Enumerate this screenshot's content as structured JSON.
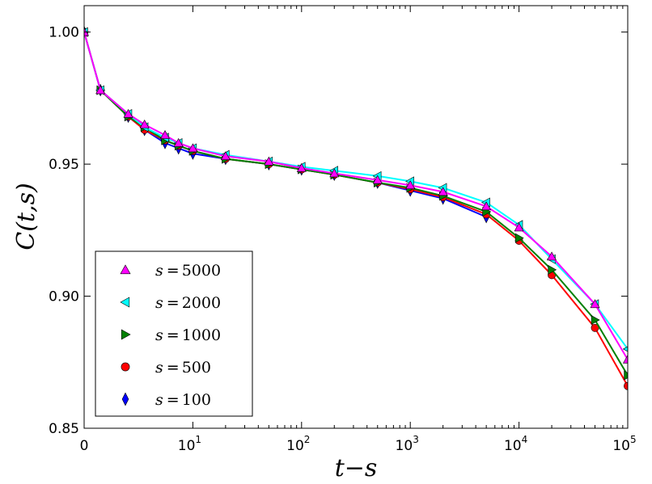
{
  "chart_data": {
    "type": "line",
    "title": "",
    "xlabel": "t−s",
    "ylabel": "C(t,s)",
    "xscale": "log (first bin at 0)",
    "xlim": [
      0,
      100000
    ],
    "ylim": [
      0.85,
      1.01
    ],
    "x_ticks": [
      {
        "value": 0,
        "label": "0",
        "exp": ""
      },
      {
        "value": 10,
        "label": "10",
        "exp": "1"
      },
      {
        "value": 100,
        "label": "10",
        "exp": "2"
      },
      {
        "value": 1000,
        "label": "10",
        "exp": "3"
      },
      {
        "value": 10000,
        "label": "10",
        "exp": "4"
      },
      {
        "value": 100000,
        "label": "10",
        "exp": "5"
      }
    ],
    "y_ticks": [
      {
        "value": 0.85,
        "label": "0.85"
      },
      {
        "value": 0.9,
        "label": "0.90"
      },
      {
        "value": 0.95,
        "label": "0.95"
      },
      {
        "value": 1.0,
        "label": "1.00"
      }
    ],
    "legend_position": "lower-left",
    "series": [
      {
        "name": "s=5000",
        "label_var": "s",
        "label_val": "5000",
        "color": "#ff00ff",
        "marker": "triangle-up",
        "x": [
          0,
          1,
          2,
          3,
          5,
          7,
          10,
          20,
          50,
          100,
          200,
          500,
          1000,
          2000,
          5000,
          10000,
          20000,
          50000,
          100000
        ],
        "y": [
          1.0,
          0.978,
          0.969,
          0.965,
          0.961,
          0.958,
          0.956,
          0.953,
          0.951,
          0.9485,
          0.9465,
          0.944,
          0.942,
          0.9395,
          0.934,
          0.926,
          0.915,
          0.897,
          0.876
        ]
      },
      {
        "name": "s=2000",
        "label_var": "s",
        "label_val": "2000",
        "color": "#00ffff",
        "marker": "triangle-left",
        "x": [
          0,
          1,
          2,
          3,
          5,
          7,
          10,
          20,
          50,
          100,
          200,
          500,
          1000,
          2000,
          5000,
          10000,
          20000,
          50000,
          100000
        ],
        "y": [
          1.0,
          0.978,
          0.969,
          0.964,
          0.96,
          0.958,
          0.956,
          0.9535,
          0.951,
          0.949,
          0.9475,
          0.9455,
          0.9435,
          0.941,
          0.9355,
          0.927,
          0.914,
          0.897,
          0.88
        ]
      },
      {
        "name": "s=1000",
        "label_var": "s",
        "label_val": "1000",
        "color": "#008000",
        "marker": "triangle-right",
        "x": [
          0,
          1,
          2,
          3,
          5,
          7,
          10,
          20,
          50,
          100,
          200,
          500,
          1000,
          2000,
          5000,
          10000,
          20000,
          50000,
          100000
        ],
        "y": [
          1.0,
          0.978,
          0.968,
          0.964,
          0.959,
          0.957,
          0.955,
          0.952,
          0.95,
          0.948,
          0.946,
          0.943,
          0.941,
          0.938,
          0.932,
          0.922,
          0.91,
          0.891,
          0.87
        ]
      },
      {
        "name": "s=500",
        "label_var": "s",
        "label_val": "500",
        "color": "#ff0000",
        "marker": "circle",
        "x": [
          0,
          1,
          2,
          3,
          5,
          7,
          10,
          20,
          50,
          100,
          200,
          500,
          1000,
          2000,
          5000,
          10000,
          20000,
          50000,
          100000
        ],
        "y": [
          1.0,
          0.978,
          0.968,
          0.963,
          0.959,
          0.957,
          0.955,
          0.952,
          0.95,
          0.948,
          0.946,
          0.943,
          0.9405,
          0.9375,
          0.931,
          0.921,
          0.908,
          0.888,
          0.866
        ]
      },
      {
        "name": "s=100",
        "label_var": "s",
        "label_val": "100",
        "color": "#0000ff",
        "marker": "diamond",
        "x": [
          0,
          1,
          2,
          3,
          5,
          7,
          10,
          20,
          50,
          100,
          200,
          500,
          1000,
          2000,
          5000
        ],
        "y": [
          1.0,
          0.978,
          0.968,
          0.963,
          0.958,
          0.956,
          0.954,
          0.952,
          0.95,
          0.948,
          0.946,
          0.943,
          0.94,
          0.937,
          0.93
        ]
      }
    ]
  }
}
